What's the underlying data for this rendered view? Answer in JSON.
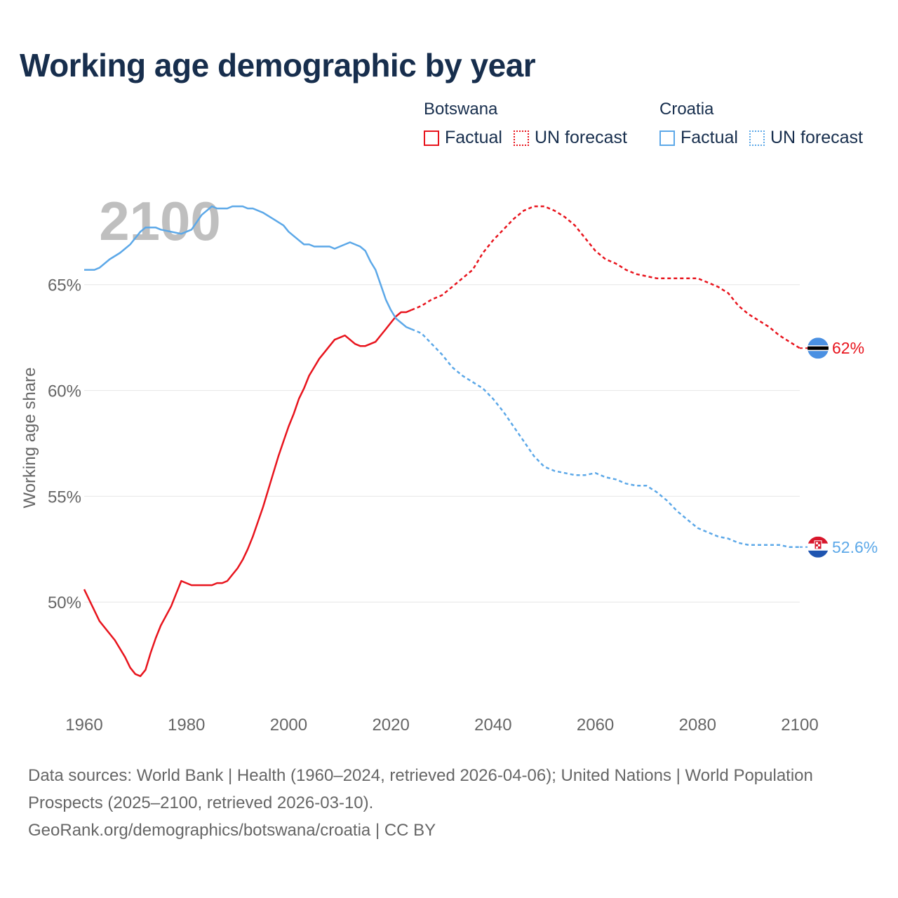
{
  "title": "Working age demographic by year",
  "legend": {
    "groups": [
      {
        "country": "Botswana",
        "factual_label": "Factual",
        "forecast_label": "UN forecast",
        "color": "#e8141d"
      },
      {
        "country": "Croatia",
        "factual_label": "Factual",
        "forecast_label": "UN forecast",
        "color": "#5ca8e8"
      }
    ]
  },
  "chart_data": {
    "type": "line",
    "title": "Working age demographic by year",
    "ylabel": "Working age share",
    "xlabel": "",
    "xlim": [
      1960,
      2100
    ],
    "ylim": [
      45.3,
      69.5
    ],
    "x_ticks": [
      1960,
      1980,
      2000,
      2020,
      2040,
      2060,
      2080,
      2100
    ],
    "x_tick_labels": [
      "1960",
      "1980",
      "2000",
      "2020",
      "2040",
      "2060",
      "2080",
      "2100"
    ],
    "y_ticks": [
      50,
      55,
      60,
      65
    ],
    "y_tick_labels": [
      "50%",
      "55%",
      "60%",
      "65%"
    ],
    "year_watermark": "2100",
    "grid": true,
    "series": [
      {
        "name": "Botswana",
        "color": "#e8141d",
        "end_label": "62%",
        "factual": [
          [
            1960,
            50.6
          ],
          [
            1963,
            49.1
          ],
          [
            1966,
            48.2
          ],
          [
            1968,
            47.4
          ],
          [
            1969,
            46.9
          ],
          [
            1970,
            46.6
          ],
          [
            1971,
            46.5
          ],
          [
            1972,
            46.8
          ],
          [
            1973,
            47.6
          ],
          [
            1974,
            48.3
          ],
          [
            1975,
            48.9
          ],
          [
            1977,
            49.8
          ],
          [
            1978,
            50.4
          ],
          [
            1979,
            51.0
          ],
          [
            1981,
            50.8
          ],
          [
            1985,
            50.8
          ],
          [
            1986,
            50.9
          ],
          [
            1987,
            50.9
          ],
          [
            1988,
            51.0
          ],
          [
            1989,
            51.3
          ],
          [
            1990,
            51.6
          ],
          [
            1991,
            52.0
          ],
          [
            1992,
            52.5
          ],
          [
            1993,
            53.1
          ],
          [
            1994,
            53.8
          ],
          [
            1995,
            54.5
          ],
          [
            1996,
            55.3
          ],
          [
            1997,
            56.1
          ],
          [
            1998,
            56.9
          ],
          [
            1999,
            57.6
          ],
          [
            2000,
            58.3
          ],
          [
            2001,
            58.9
          ],
          [
            2002,
            59.6
          ],
          [
            2003,
            60.1
          ],
          [
            2004,
            60.7
          ],
          [
            2005,
            61.1
          ],
          [
            2006,
            61.5
          ],
          [
            2007,
            61.8
          ],
          [
            2008,
            62.1
          ],
          [
            2009,
            62.4
          ],
          [
            2010,
            62.5
          ],
          [
            2011,
            62.6
          ],
          [
            2012,
            62.4
          ],
          [
            2013,
            62.2
          ],
          [
            2014,
            62.1
          ],
          [
            2015,
            62.1
          ],
          [
            2016,
            62.2
          ],
          [
            2017,
            62.3
          ],
          [
            2018,
            62.6
          ],
          [
            2019,
            62.9
          ],
          [
            2020,
            63.2
          ],
          [
            2021,
            63.5
          ],
          [
            2022,
            63.7
          ],
          [
            2023,
            63.7
          ],
          [
            2024,
            63.8
          ]
        ],
        "forecast": [
          [
            2024,
            63.8
          ],
          [
            2026,
            64.0
          ],
          [
            2028,
            64.3
          ],
          [
            2030,
            64.5
          ],
          [
            2032,
            64.9
          ],
          [
            2034,
            65.3
          ],
          [
            2036,
            65.7
          ],
          [
            2038,
            66.5
          ],
          [
            2040,
            67.1
          ],
          [
            2042,
            67.6
          ],
          [
            2044,
            68.1
          ],
          [
            2046,
            68.5
          ],
          [
            2048,
            68.7
          ],
          [
            2050,
            68.7
          ],
          [
            2052,
            68.5
          ],
          [
            2054,
            68.2
          ],
          [
            2056,
            67.8
          ],
          [
            2058,
            67.2
          ],
          [
            2060,
            66.6
          ],
          [
            2062,
            66.2
          ],
          [
            2064,
            66.0
          ],
          [
            2066,
            65.7
          ],
          [
            2068,
            65.5
          ],
          [
            2070,
            65.4
          ],
          [
            2072,
            65.3
          ],
          [
            2076,
            65.3
          ],
          [
            2080,
            65.3
          ],
          [
            2082,
            65.1
          ],
          [
            2084,
            64.9
          ],
          [
            2086,
            64.6
          ],
          [
            2088,
            64.0
          ],
          [
            2090,
            63.6
          ],
          [
            2092,
            63.3
          ],
          [
            2094,
            63.0
          ],
          [
            2096,
            62.6
          ],
          [
            2098,
            62.3
          ],
          [
            2100,
            62.0
          ]
        ]
      },
      {
        "name": "Croatia",
        "color": "#5ca8e8",
        "end_label": "52.6%",
        "factual": [
          [
            1960,
            65.7
          ],
          [
            1962,
            65.7
          ],
          [
            1963,
            65.8
          ],
          [
            1965,
            66.2
          ],
          [
            1967,
            66.5
          ],
          [
            1969,
            66.9
          ],
          [
            1971,
            67.5
          ],
          [
            1972,
            67.7
          ],
          [
            1974,
            67.7
          ],
          [
            1975,
            67.6
          ],
          [
            1977,
            67.5
          ],
          [
            1979,
            67.4
          ],
          [
            1981,
            67.6
          ],
          [
            1983,
            68.3
          ],
          [
            1985,
            68.7
          ],
          [
            1986,
            68.6
          ],
          [
            1988,
            68.6
          ],
          [
            1989,
            68.7
          ],
          [
            1991,
            68.7
          ],
          [
            1992,
            68.6
          ],
          [
            1993,
            68.6
          ],
          [
            1995,
            68.4
          ],
          [
            1997,
            68.1
          ],
          [
            1999,
            67.8
          ],
          [
            2000,
            67.5
          ],
          [
            2002,
            67.1
          ],
          [
            2003,
            66.9
          ],
          [
            2004,
            66.9
          ],
          [
            2005,
            66.8
          ],
          [
            2008,
            66.8
          ],
          [
            2009,
            66.7
          ],
          [
            2011,
            66.9
          ],
          [
            2012,
            67.0
          ],
          [
            2013,
            66.9
          ],
          [
            2014,
            66.8
          ],
          [
            2015,
            66.6
          ],
          [
            2016,
            66.1
          ],
          [
            2017,
            65.7
          ],
          [
            2018,
            65.0
          ],
          [
            2019,
            64.3
          ],
          [
            2020,
            63.8
          ],
          [
            2021,
            63.4
          ],
          [
            2022,
            63.2
          ],
          [
            2023,
            63.0
          ],
          [
            2024,
            62.9
          ]
        ],
        "forecast": [
          [
            2024,
            62.9
          ],
          [
            2026,
            62.7
          ],
          [
            2028,
            62.2
          ],
          [
            2030,
            61.7
          ],
          [
            2032,
            61.1
          ],
          [
            2034,
            60.7
          ],
          [
            2036,
            60.4
          ],
          [
            2038,
            60.1
          ],
          [
            2040,
            59.6
          ],
          [
            2042,
            59.0
          ],
          [
            2044,
            58.3
          ],
          [
            2046,
            57.6
          ],
          [
            2048,
            56.9
          ],
          [
            2050,
            56.4
          ],
          [
            2052,
            56.2
          ],
          [
            2054,
            56.1
          ],
          [
            2056,
            56.0
          ],
          [
            2058,
            56.0
          ],
          [
            2060,
            56.1
          ],
          [
            2062,
            55.9
          ],
          [
            2064,
            55.8
          ],
          [
            2066,
            55.6
          ],
          [
            2068,
            55.5
          ],
          [
            2070,
            55.5
          ],
          [
            2072,
            55.2
          ],
          [
            2074,
            54.8
          ],
          [
            2076,
            54.3
          ],
          [
            2078,
            53.9
          ],
          [
            2080,
            53.5
          ],
          [
            2082,
            53.3
          ],
          [
            2084,
            53.1
          ],
          [
            2086,
            53.0
          ],
          [
            2088,
            52.8
          ],
          [
            2090,
            52.7
          ],
          [
            2096,
            52.7
          ],
          [
            2098,
            52.6
          ],
          [
            2100,
            52.6
          ]
        ]
      }
    ]
  },
  "footer": {
    "line1": "Data sources: World Bank | Health (1960–2024, retrieved 2026-04-06); United Nations | World Population Prospects (2025–2100, retrieved 2026-03-10).",
    "line2": "GeoRank.org/demographics/botswana/croatia | CC BY"
  }
}
